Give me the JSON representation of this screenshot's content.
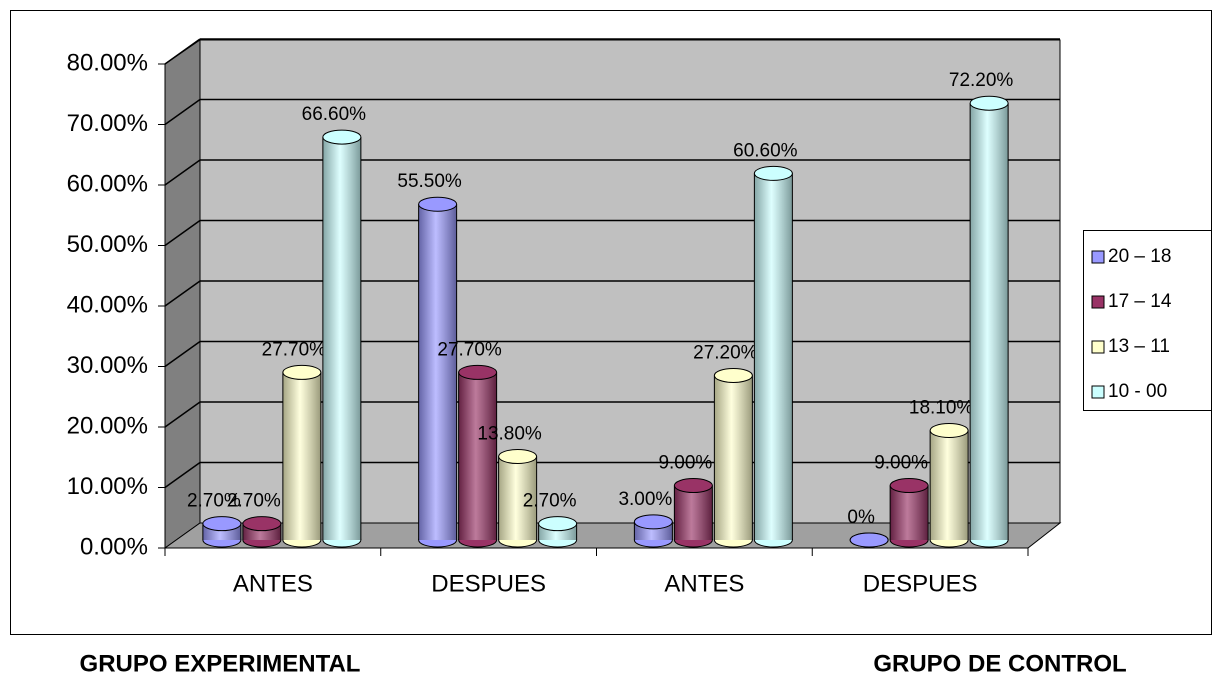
{
  "chart_data": {
    "type": "bar3d",
    "categories": [
      "ANTES",
      "DESPUES",
      "ANTES",
      "DESPUES"
    ],
    "group_labels": [
      "GRUPO EXPERIMENTAL",
      "GRUPO DE CONTROL"
    ],
    "series": [
      {
        "name": "20 – 18",
        "color": "#9999ff",
        "values": [
          2.7,
          55.5,
          3.0,
          0
        ],
        "value_labels": [
          "2.70%",
          "55.50%",
          "3.00%",
          "0%"
        ]
      },
      {
        "name": "17 – 14",
        "color": "#993366",
        "values": [
          2.7,
          27.7,
          9.0,
          9.0
        ],
        "value_labels": [
          "2.70%",
          "27.70%",
          "9.00%",
          "9.00%"
        ]
      },
      {
        "name": "13 – 11",
        "color": "#ffffcc",
        "values": [
          27.7,
          13.8,
          27.2,
          18.1
        ],
        "value_labels": [
          "27.70%",
          "13.80%",
          "27.20%",
          "18.10%"
        ]
      },
      {
        "name": "10 - 00",
        "color": "#ccffff",
        "values": [
          66.6,
          2.7,
          60.6,
          72.2
        ],
        "value_labels": [
          "66.60%",
          "2.70%",
          "60.60%",
          "72.20%"
        ]
      }
    ],
    "ylim": [
      0,
      80
    ],
    "yticks": [
      {
        "value": 0,
        "label": "0.00%"
      },
      {
        "value": 10,
        "label": "10.00%"
      },
      {
        "value": 20,
        "label": "20.00%"
      },
      {
        "value": 30,
        "label": "30.00%"
      },
      {
        "value": 40,
        "label": "40.00%"
      },
      {
        "value": 50,
        "label": "50.00%"
      },
      {
        "value": 60,
        "label": "60.00%"
      },
      {
        "value": 70,
        "label": "70.00%"
      },
      {
        "value": 80,
        "label": "80.00%"
      }
    ],
    "grid": true,
    "legend": "right"
  }
}
